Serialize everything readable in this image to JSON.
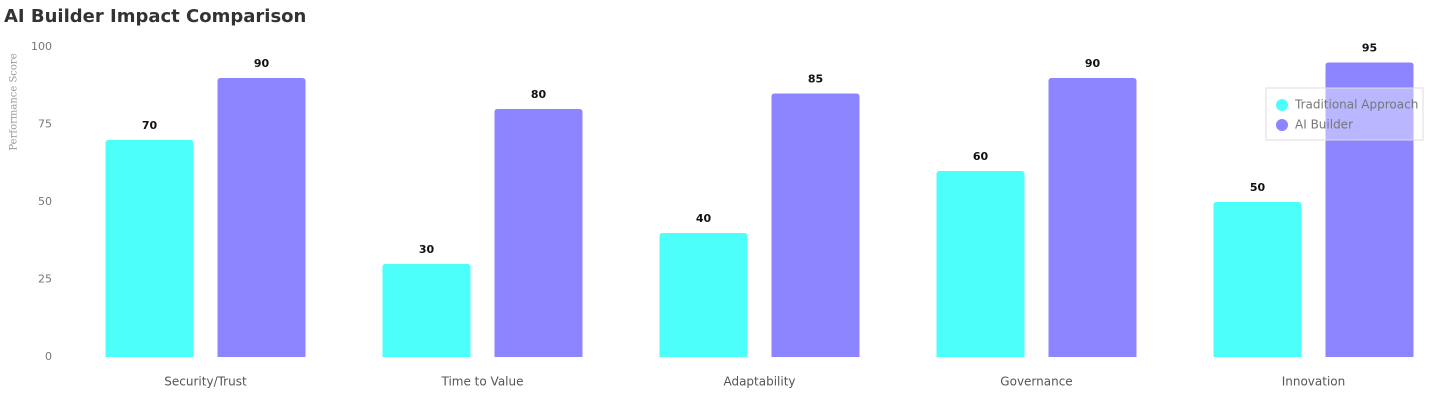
{
  "chart_data": {
    "type": "bar",
    "title": "AI Builder Impact Comparison",
    "y_label": "Performance Score",
    "categories": [
      "Security/Trust",
      "Time to Value",
      "Adaptability",
      "Governance",
      "Innovation"
    ],
    "series": [
      {
        "name": "Traditional Approach",
        "color": "#4dfffb",
        "values": [
          70,
          30,
          40,
          60,
          50
        ]
      },
      {
        "name": "AI Builder",
        "color": "#8c85ff",
        "values": [
          90,
          80,
          85,
          90,
          95
        ]
      }
    ],
    "ylim": [
      0,
      100
    ],
    "yticks": [
      0,
      25,
      50,
      75,
      100
    ],
    "grid": false,
    "legend": "upper right"
  }
}
